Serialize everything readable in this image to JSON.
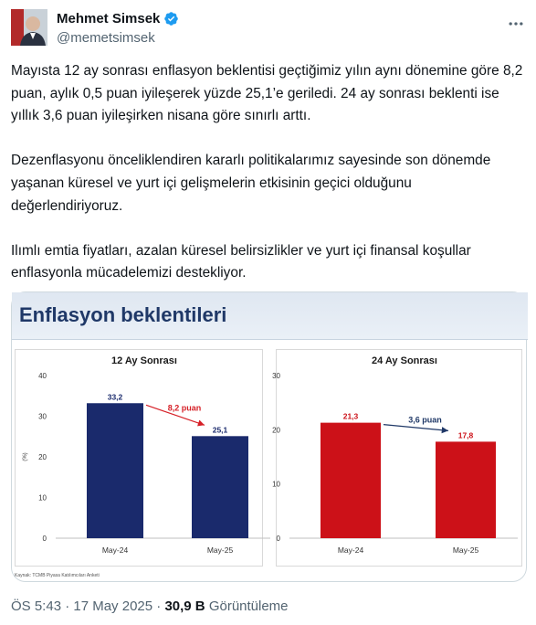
{
  "tweet": {
    "author_name": "Mehmet Simsek",
    "author_handle": "@memetsimsek",
    "paragraphs": [
      "Mayısta 12 ay sonrası enflasyon beklentisi geçtiğimiz yılın aynı dönemine göre 8,2 puan, aylık 0,5 puan iyileşerek yüzde 25,1’e geriledi. 24 ay sonrası beklenti ise yıllık 3,6 puan iyileşirken nisana göre sınırlı arttı.",
      "Dezenflasyonu önceliklendiren kararlı politikalarımız sayesinde son dönemde yaşanan küresel ve yurt içi gelişmelerin etkisinin geçici olduğunu değerlendiriyoruz.",
      "Ilımlı emtia fiyatları, azalan küresel belirsizlikler ve yurt içi finansal koşullar enflasyonla mücadelemizi destekliyor."
    ],
    "timestamp": "ÖS 5:43 · 17 May 2025",
    "views_count": "30,9 B",
    "views_label": "Görüntüleme",
    "separator": " · "
  },
  "media": {
    "title": "Enflasyon beklentileri",
    "source": "Kaynak: TCMB Piyasa Katılımcıları Anketi"
  },
  "colors": {
    "bar_12m": "#1a2a6c",
    "bar_24m": "#cc1118",
    "arrow_12m": "#d62027",
    "arrow_24m": "#1f3867",
    "title": "#1f3867",
    "verified": "#1d9bf0"
  },
  "icons": {
    "verified": "verified-badge-icon",
    "more": "more-dots-icon"
  },
  "chart_data": [
    {
      "type": "bar",
      "title": "12 Ay Sonrası",
      "ylabel": "(%)",
      "categories": [
        "May-24",
        "May-25"
      ],
      "values": [
        33.2,
        25.1
      ],
      "value_labels": [
        "33,2",
        "25,1"
      ],
      "annotation": "8,2 puan",
      "ylim": [
        0,
        40
      ],
      "yticks": [
        0,
        10,
        20,
        30,
        40
      ],
      "ytick_labels": [
        "0",
        "10",
        "20",
        "30",
        "40"
      ],
      "grid": false
    },
    {
      "type": "bar",
      "title": "24 Ay Sonrası",
      "categories": [
        "May-24",
        "May-25"
      ],
      "values": [
        21.3,
        17.8
      ],
      "value_labels": [
        "21,3",
        "17,8"
      ],
      "annotation": "3,6 puan",
      "ylim": [
        0,
        30
      ],
      "yticks": [
        0,
        10,
        20,
        30
      ],
      "ytick_labels": [
        "0",
        "10",
        "20",
        "30"
      ],
      "grid": false
    }
  ]
}
